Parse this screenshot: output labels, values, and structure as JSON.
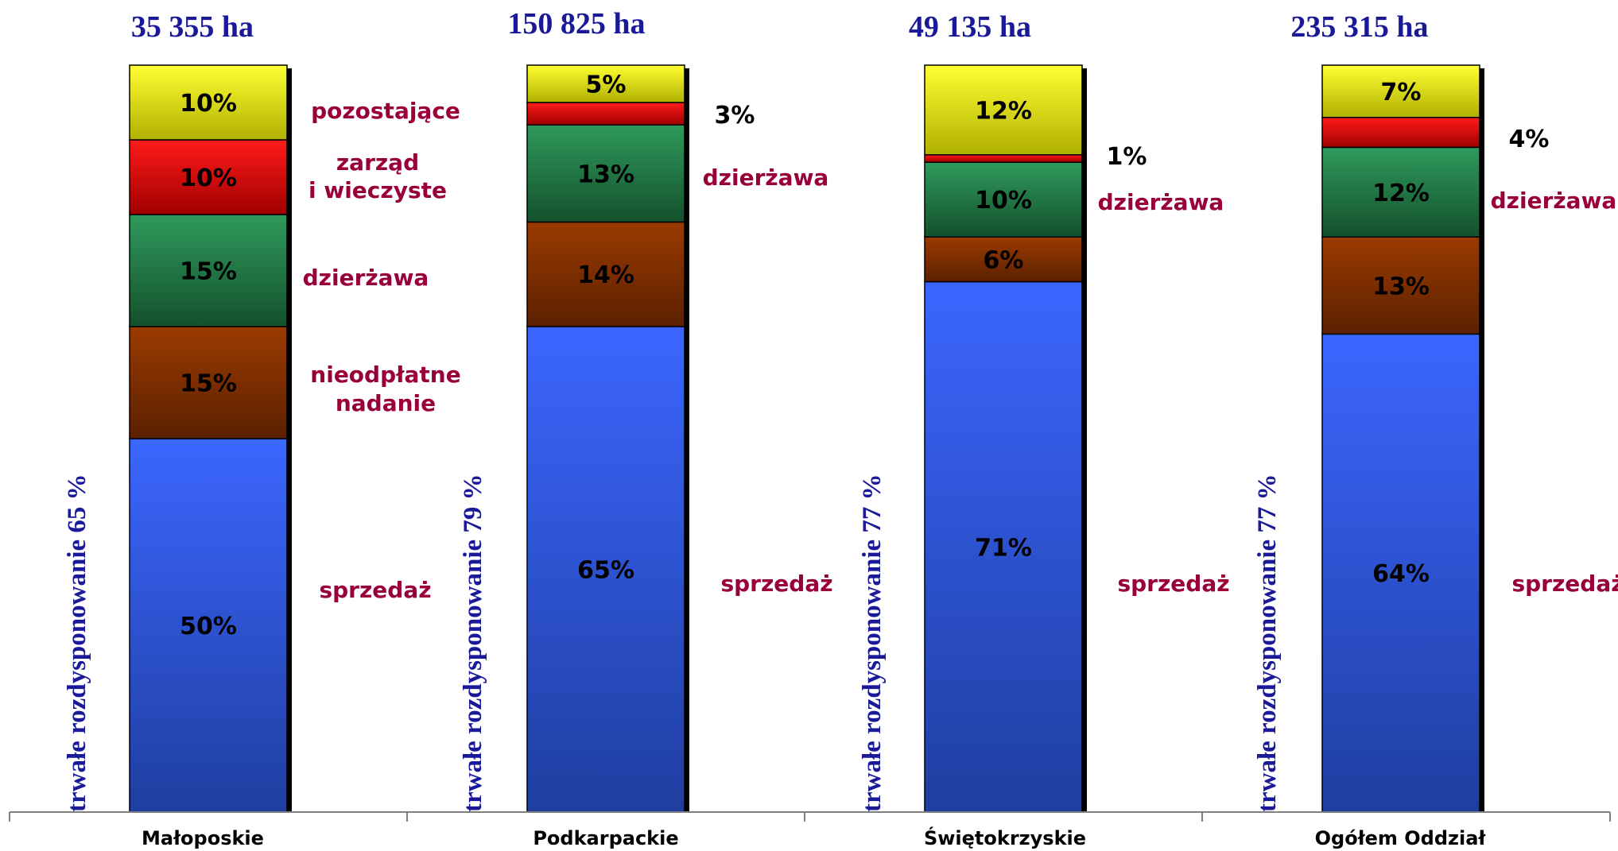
{
  "chart_data": {
    "type": "bar",
    "stacked": true,
    "percent_stacked": true,
    "categories": [
      "Małoposkie",
      "Podkarpackie",
      "Świętokrzyskie",
      "Ogółem Oddział"
    ],
    "totals": [
      "35  355 ha",
      "150 825 ha",
      "49 135 ha",
      "235 315 ha"
    ],
    "vertical_labels": [
      "trwałe rozdysponowanie 65 %",
      "trwałe rozdysponowanie 79 %",
      "trwałe rozdysponowanie 77 %",
      "trwałe rozdysponowanie 77 %"
    ],
    "series": [
      {
        "key": "sprzedaz",
        "values": [
          50,
          65,
          71,
          64
        ],
        "labels": [
          "50%",
          "65%",
          "71%",
          "64%"
        ]
      },
      {
        "key": "nieodplatne",
        "values": [
          15,
          14,
          6,
          13
        ],
        "labels": [
          "15%",
          "14%",
          "6%",
          "13%"
        ]
      },
      {
        "key": "dzierzawa",
        "values": [
          15,
          13,
          10,
          12
        ],
        "labels": [
          "15%",
          "13%",
          "10%",
          "12%"
        ]
      },
      {
        "key": "zarzad",
        "values": [
          10,
          3,
          1,
          4
        ],
        "labels": [
          "10%",
          "",
          "",
          ""
        ]
      },
      {
        "key": "pozostajace",
        "values": [
          10,
          5,
          12,
          7
        ],
        "labels": [
          "10%",
          "5%",
          "12%",
          "7%"
        ]
      }
    ],
    "side_annotations": {
      "bar1": {
        "pozostajace": "pozostające",
        "zarzad_line1": "zarząd",
        "zarzad_line2": "i wieczyste",
        "dzierzawa": "dzierżawa",
        "nieodplatne_line1": "nieodpłatne",
        "nieodplatne_line2": "nadanie",
        "sprzedaz": "sprzedaż"
      },
      "bar2": {
        "zarzad_pct": "3%",
        "dzierzawa": "dzierżawa",
        "sprzedaz": "sprzedaż"
      },
      "bar3": {
        "zarzad_pct": "1%",
        "dzierzawa": "dzierżawa",
        "sprzedaz": "sprzedaż"
      },
      "bar4": {
        "zarzad_pct": "4%",
        "dzierzawa": "dzierżawa",
        "sprzedaz": "sprzedaż"
      }
    },
    "ylim": [
      0,
      100
    ],
    "grid": false,
    "legend": "none",
    "colors": {
      "sprzedaz": [
        "#3b66ff",
        "#1f3ea0"
      ],
      "nieodplatne": [
        "#9a3a00",
        "#5c2000"
      ],
      "dzierzawa": [
        "#2f9a5c",
        "#14502c"
      ],
      "zarzad": [
        "#ff1a1a",
        "#a00000"
      ],
      "pozostajace": [
        "#ffff33",
        "#b0b000"
      ],
      "side_label": "#99003a",
      "title": "#1a1a99"
    }
  }
}
